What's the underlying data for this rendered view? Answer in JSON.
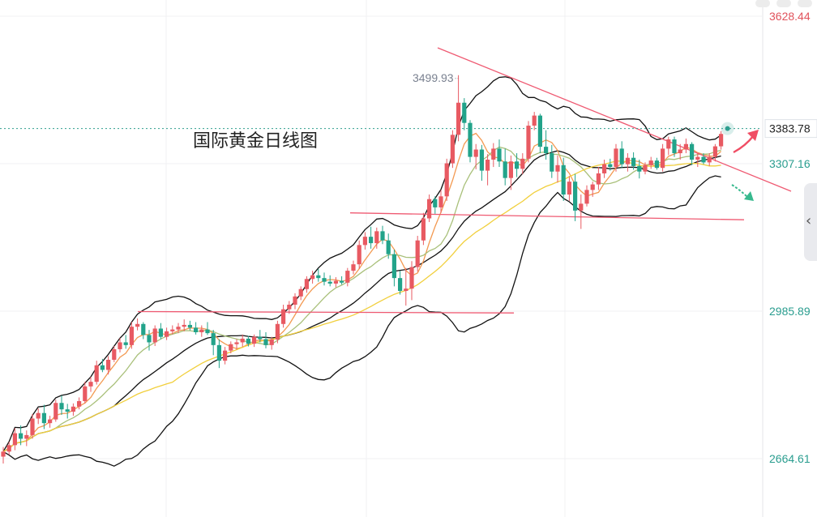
{
  "chart_data": {
    "type": "candlestick",
    "title": "国际黄金日线图",
    "y_axis_ticks": [
      "3628.44",
      "3307.16",
      "2985.89",
      "2664.61"
    ],
    "current_price_label": "3383.78",
    "high_annotation": "3499.93",
    "ylim": [
      2596.5,
      3668.5
    ],
    "grid": true,
    "candles": [
      [
        2669,
        2690,
        2654,
        2680
      ],
      [
        2680,
        2701,
        2673,
        2694
      ],
      [
        2694,
        2731,
        2683,
        2720
      ],
      [
        2720,
        2737,
        2694,
        2708
      ],
      [
        2708,
        2726,
        2692,
        2716
      ],
      [
        2716,
        2762,
        2708,
        2752
      ],
      [
        2752,
        2774,
        2740,
        2764
      ],
      [
        2764,
        2782,
        2729,
        2742
      ],
      [
        2742,
        2758,
        2732,
        2750
      ],
      [
        2750,
        2793,
        2745,
        2786
      ],
      [
        2786,
        2802,
        2760,
        2772
      ],
      [
        2772,
        2784,
        2752,
        2767
      ],
      [
        2767,
        2785,
        2758,
        2778
      ],
      [
        2778,
        2798,
        2772,
        2790
      ],
      [
        2790,
        2832,
        2785,
        2822
      ],
      [
        2822,
        2843,
        2810,
        2832
      ],
      [
        2832,
        2878,
        2826,
        2868
      ],
      [
        2868,
        2882,
        2853,
        2858
      ],
      [
        2858,
        2888,
        2848,
        2880
      ],
      [
        2880,
        2910,
        2875,
        2903
      ],
      [
        2903,
        2927,
        2896,
        2918
      ],
      [
        2918,
        2934,
        2904,
        2912
      ],
      [
        2912,
        2962,
        2904,
        2952
      ],
      [
        2952,
        2970,
        2944,
        2958
      ],
      [
        2958,
        2962,
        2925,
        2934
      ],
      [
        2934,
        2945,
        2900,
        2918
      ],
      [
        2918,
        2955,
        2910,
        2948
      ],
      [
        2948,
        2960,
        2925,
        2930
      ],
      [
        2930,
        2950,
        2923,
        2942
      ],
      [
        2942,
        2955,
        2935,
        2946
      ],
      [
        2946,
        2960,
        2938,
        2952
      ],
      [
        2952,
        2968,
        2942,
        2956
      ],
      [
        2956,
        2965,
        2944,
        2950
      ],
      [
        2950,
        2962,
        2935,
        2940
      ],
      [
        2940,
        2955,
        2930,
        2946
      ],
      [
        2946,
        2962,
        2934,
        2938
      ],
      [
        2938,
        2945,
        2890,
        2912
      ],
      [
        2912,
        2925,
        2862,
        2878
      ],
      [
        2878,
        2908,
        2870,
        2900
      ],
      [
        2900,
        2920,
        2894,
        2914
      ],
      [
        2914,
        2925,
        2902,
        2918
      ],
      [
        2918,
        2935,
        2908,
        2926
      ],
      [
        2926,
        2932,
        2909,
        2915
      ],
      [
        2915,
        2935,
        2908,
        2930
      ],
      [
        2930,
        2945,
        2918,
        2925
      ],
      [
        2925,
        2940,
        2905,
        2912
      ],
      [
        2912,
        2930,
        2902,
        2924
      ],
      [
        2924,
        2965,
        2916,
        2958
      ],
      [
        2958,
        3000,
        2950,
        2990
      ],
      [
        2990,
        3008,
        2980,
        3000
      ],
      [
        3000,
        3025,
        2990,
        3018
      ],
      [
        3018,
        3040,
        3010,
        3034
      ],
      [
        3034,
        3062,
        3026,
        3056
      ],
      [
        3056,
        3074,
        3046,
        3064
      ],
      [
        3064,
        3078,
        3050,
        3058
      ],
      [
        3058,
        3070,
        3042,
        3050
      ],
      [
        3050,
        3064,
        3040,
        3046
      ],
      [
        3046,
        3060,
        3038,
        3052
      ],
      [
        3052,
        3062,
        3044,
        3048
      ],
      [
        3048,
        3080,
        3040,
        3074
      ],
      [
        3074,
        3096,
        3066,
        3088
      ],
      [
        3088,
        3140,
        3078,
        3130
      ],
      [
        3130,
        3158,
        3120,
        3148
      ],
      [
        3148,
        3170,
        3122,
        3134
      ],
      [
        3134,
        3168,
        3122,
        3160
      ],
      [
        3160,
        3172,
        3132,
        3140
      ],
      [
        3140,
        3155,
        3100,
        3110
      ],
      [
        3110,
        3120,
        3040,
        3058
      ],
      [
        3058,
        3074,
        3022,
        3030
      ],
      [
        3030,
        3080,
        2998,
        3035
      ],
      [
        3035,
        3095,
        3010,
        3082
      ],
      [
        3082,
        3150,
        3072,
        3140
      ],
      [
        3140,
        3200,
        3130,
        3188
      ],
      [
        3188,
        3240,
        3180,
        3230
      ],
      [
        3230,
        3236,
        3198,
        3212
      ],
      [
        3212,
        3250,
        3200,
        3236
      ],
      [
        3236,
        3318,
        3226,
        3308
      ],
      [
        3308,
        3380,
        3298,
        3370
      ],
      [
        3370,
        3500,
        3356,
        3440
      ],
      [
        3440,
        3450,
        3380,
        3396
      ],
      [
        3396,
        3402,
        3310,
        3322
      ],
      [
        3322,
        3350,
        3295,
        3338
      ],
      [
        3338,
        3348,
        3270,
        3292
      ],
      [
        3292,
        3328,
        3260,
        3316
      ],
      [
        3316,
        3352,
        3300,
        3340
      ],
      [
        3340,
        3360,
        3300,
        3312
      ],
      [
        3312,
        3340,
        3260,
        3276
      ],
      [
        3276,
        3325,
        3250,
        3312
      ],
      [
        3312,
        3330,
        3278,
        3296
      ],
      [
        3296,
        3330,
        3284,
        3318
      ],
      [
        3318,
        3400,
        3310,
        3390
      ],
      [
        3390,
        3420,
        3380,
        3412
      ],
      [
        3412,
        3416,
        3330,
        3344
      ],
      [
        3344,
        3380,
        3316,
        3330
      ],
      [
        3330,
        3348,
        3276,
        3290
      ],
      [
        3290,
        3325,
        3266,
        3304
      ],
      [
        3304,
        3320,
        3226,
        3240
      ],
      [
        3240,
        3280,
        3226,
        3268
      ],
      [
        3268,
        3285,
        3182,
        3205
      ],
      [
        3205,
        3240,
        3165,
        3220
      ],
      [
        3220,
        3260,
        3214,
        3250
      ],
      [
        3250,
        3268,
        3235,
        3262
      ],
      [
        3262,
        3300,
        3250,
        3286
      ],
      [
        3286,
        3316,
        3276,
        3306
      ],
      [
        3306,
        3318,
        3292,
        3300
      ],
      [
        3300,
        3350,
        3290,
        3340
      ],
      [
        3340,
        3356,
        3298,
        3306
      ],
      [
        3306,
        3330,
        3290,
        3320
      ],
      [
        3320,
        3332,
        3294,
        3302
      ],
      [
        3302,
        3316,
        3275,
        3290
      ],
      [
        3290,
        3310,
        3284,
        3304
      ],
      [
        3304,
        3322,
        3296,
        3314
      ],
      [
        3314,
        3320,
        3294,
        3298
      ],
      [
        3298,
        3350,
        3290,
        3340
      ],
      [
        3340,
        3366,
        3326,
        3360
      ],
      [
        3360,
        3366,
        3322,
        3330
      ],
      [
        3330,
        3350,
        3316,
        3338
      ],
      [
        3338,
        3362,
        3330,
        3350
      ],
      [
        3350,
        3354,
        3304,
        3316
      ],
      [
        3316,
        3330,
        3300,
        3322
      ],
      [
        3322,
        3330,
        3306,
        3310
      ],
      [
        3310,
        3330,
        3302,
        3322
      ],
      [
        3322,
        3350,
        3312,
        3345
      ],
      [
        3345,
        3378,
        3338,
        3372
      ]
    ]
  }
}
